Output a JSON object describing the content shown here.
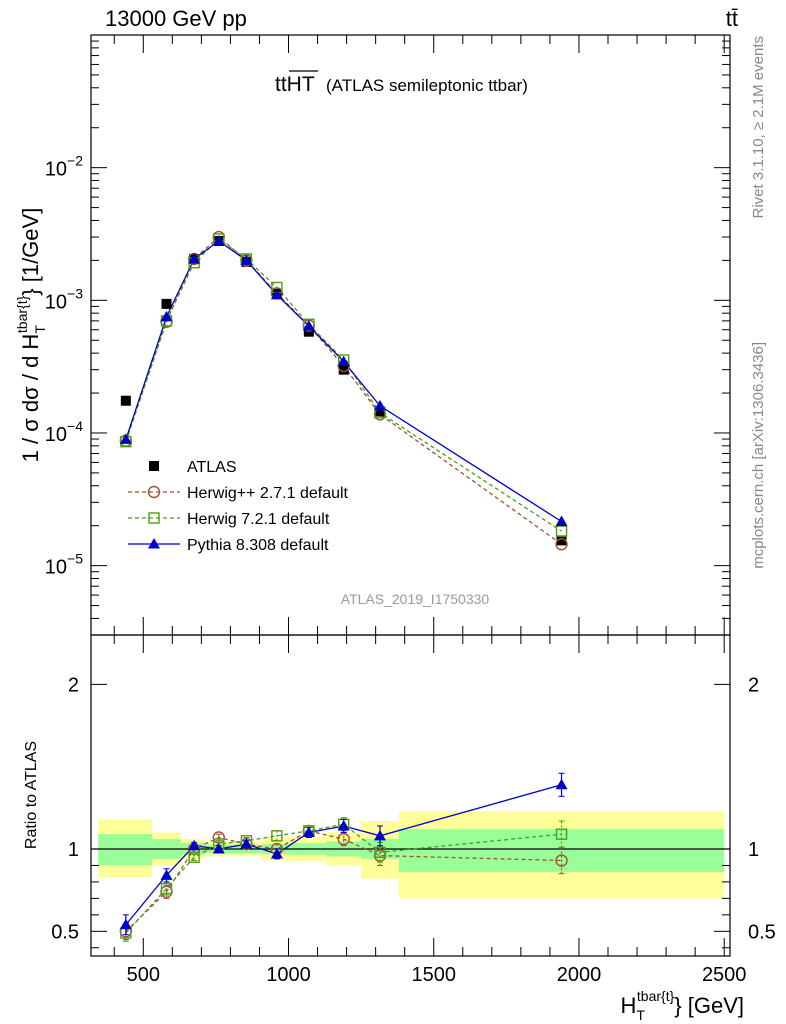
{
  "header": {
    "energy": "13000 GeV pp",
    "process": "tt̄"
  },
  "plot_title": {
    "main": "ttHT",
    "sub": "(ATLAS semileptonic ttbar)"
  },
  "side_text": {
    "rivet": "Rivet 3.1.10, ≥ 2.1M events",
    "mcplots": "mcplots.cern.ch [arXiv:1306.3436]"
  },
  "analysis_id": "ATLAS_2019_I1750330",
  "colors": {
    "atlas": "#000000",
    "herwigpp": "#a0522d",
    "herwig7": "#4a9e1a",
    "pythia": "#0000cc",
    "band_inner": "#99ff99",
    "band_outer": "#ffff99"
  },
  "chart_data": [
    {
      "type": "scatter",
      "name": "main",
      "ylabel": "1 / σ dσ / d H_T^{tbar{t}} [1/GeV]",
      "yscale": "log",
      "ylim": [
        3e-06,
        0.1
      ],
      "xlim": [
        320,
        2520
      ],
      "yticks": [
        {
          "value": 1e-05,
          "base": "10",
          "exp": "−5"
        },
        {
          "value": 0.0001,
          "base": "10",
          "exp": "−4"
        },
        {
          "value": 0.001,
          "base": "10",
          "exp": "−3"
        },
        {
          "value": 0.01,
          "base": "10",
          "exp": "−2"
        }
      ],
      "legend": {
        "placement": "lower-left",
        "entries": [
          {
            "key": "atlas",
            "label": "ATLAS"
          },
          {
            "key": "herwigpp",
            "label": "Herwig++ 2.7.1 default"
          },
          {
            "key": "herwig7",
            "label": "Herwig 7.2.1 default"
          },
          {
            "key": "pythia",
            "label": "Pythia 8.308 default"
          }
        ]
      },
      "x": [
        440,
        580,
        675,
        760,
        855,
        960,
        1070,
        1190,
        1315,
        1940
      ],
      "series": [
        {
          "key": "atlas",
          "name": "ATLAS",
          "y": [
            0.000175,
            0.00094,
            0.00205,
            0.0028,
            0.00195,
            0.00112,
            0.00058,
            0.0003,
            0.000145,
            1.55e-05
          ]
        },
        {
          "key": "herwigpp",
          "name": "Herwig++ 2.7.1 default",
          "y": [
            8.75e-05,
            0.00069,
            0.00205,
            0.003,
            0.002,
            0.00113,
            0.000645,
            0.00032,
            0.000138,
            1.45e-05
          ]
        },
        {
          "key": "herwig7",
          "name": "Herwig 7.2.1 default",
          "y": [
            8.6e-05,
            0.0007,
            0.00192,
            0.0029,
            0.00205,
            0.00125,
            0.00066,
            0.000355,
            0.000142,
            1.82e-05
          ]
        },
        {
          "key": "pythia",
          "name": "Pythia 8.308 default",
          "y": [
            8.95e-05,
            0.00075,
            0.00205,
            0.0028,
            0.002,
            0.0011,
            0.00064,
            0.000345,
            0.00016,
            2.15e-05
          ]
        }
      ]
    },
    {
      "type": "scatter",
      "name": "ratio",
      "ylabel": "Ratio to ATLAS",
      "ylim": [
        0.35,
        2.3
      ],
      "xlim": [
        320,
        2520
      ],
      "xlabel": "H_T^{tbar{t}} [GeV]",
      "xticks": [
        500,
        1000,
        1500,
        2000,
        2500
      ],
      "yticks": [
        0.5,
        1,
        2
      ],
      "reference": 1,
      "bands": [
        {
          "x0": 345,
          "x1": 530,
          "inner": [
            0.9,
            1.09
          ],
          "outer": [
            0.83,
            1.18
          ]
        },
        {
          "x0": 530,
          "x1": 630,
          "inner": [
            0.94,
            1.06
          ],
          "outer": [
            0.9,
            1.1
          ]
        },
        {
          "x0": 630,
          "x1": 710,
          "inner": [
            0.965,
            1.035
          ],
          "outer": [
            0.94,
            1.06
          ]
        },
        {
          "x0": 710,
          "x1": 810,
          "inner": [
            0.975,
            1.025
          ],
          "outer": [
            0.955,
            1.045
          ]
        },
        {
          "x0": 810,
          "x1": 910,
          "inner": [
            0.975,
            1.025
          ],
          "outer": [
            0.955,
            1.045
          ]
        },
        {
          "x0": 910,
          "x1": 1010,
          "inner": [
            0.97,
            1.03
          ],
          "outer": [
            0.93,
            1.07
          ]
        },
        {
          "x0": 1010,
          "x1": 1130,
          "inner": [
            0.965,
            1.035
          ],
          "outer": [
            0.925,
            1.075
          ]
        },
        {
          "x0": 1130,
          "x1": 1250,
          "inner": [
            0.955,
            1.045
          ],
          "outer": [
            0.9,
            1.1
          ]
        },
        {
          "x0": 1250,
          "x1": 1380,
          "inner": [
            0.94,
            1.06
          ],
          "outer": [
            0.82,
            1.17
          ]
        },
        {
          "x0": 1380,
          "x1": 2500,
          "inner": [
            0.86,
            1.12
          ],
          "outer": [
            0.7,
            1.23
          ]
        }
      ],
      "x": [
        440,
        580,
        675,
        760,
        855,
        960,
        1070,
        1190,
        1315,
        1940
      ],
      "series": [
        {
          "key": "herwigpp",
          "name": "Herwig++ 2.7.1 default",
          "y": [
            0.5,
            0.74,
            1.0,
            1.07,
            1.03,
            1.0,
            1.11,
            1.06,
            0.96,
            0.93
          ],
          "err": [
            0.05,
            0.04,
            0.02,
            0.02,
            0.02,
            0.03,
            0.03,
            0.04,
            0.06,
            0.08
          ]
        },
        {
          "key": "herwig7",
          "name": "Herwig 7.2.1 default",
          "y": [
            0.49,
            0.76,
            0.95,
            1.03,
            1.05,
            1.08,
            1.11,
            1.15,
            0.98,
            1.09
          ],
          "err": [
            0.05,
            0.04,
            0.02,
            0.02,
            0.02,
            0.03,
            0.03,
            0.04,
            0.06,
            0.08
          ]
        },
        {
          "key": "pythia",
          "name": "Pythia 8.308 default",
          "y": [
            0.54,
            0.84,
            1.02,
            1.0,
            1.03,
            0.97,
            1.1,
            1.14,
            1.08,
            1.39
          ],
          "err": [
            0.06,
            0.04,
            0.02,
            0.02,
            0.02,
            0.03,
            0.03,
            0.04,
            0.06,
            0.07
          ]
        }
      ]
    }
  ]
}
